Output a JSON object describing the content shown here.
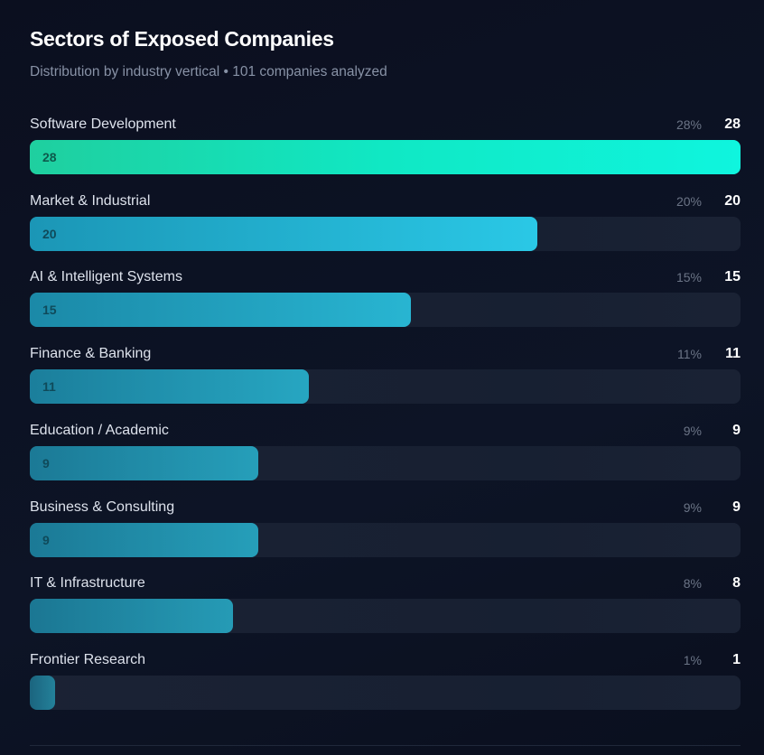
{
  "title": "Sectors of Exposed Companies",
  "subtitle": "Distribution by industry vertical • 101 companies analyzed",
  "chart_data": {
    "type": "bar",
    "orientation": "horizontal",
    "title": "Sectors of Exposed Companies",
    "subtitle": "Distribution by industry vertical • 101 companies analyzed",
    "categories": [
      "Software Development",
      "Market & Industrial",
      "AI & Intelligent Systems",
      "Finance & Banking",
      "Education / Academic",
      "Business & Consulting",
      "IT & Infrastructure",
      "Frontier Research"
    ],
    "values": [
      28,
      20,
      15,
      11,
      9,
      9,
      8,
      1
    ],
    "percents": [
      "28%",
      "20%",
      "15%",
      "11%",
      "9%",
      "9%",
      "8%",
      "1%"
    ],
    "inbar_labels": [
      "28",
      "20",
      "15",
      "11",
      "9",
      "9",
      "",
      ""
    ],
    "xlim": [
      0,
      28
    ],
    "colors": {
      "top": "#0ff0d6",
      "primary": "#22c3e0",
      "track": "#1a2234"
    }
  }
}
